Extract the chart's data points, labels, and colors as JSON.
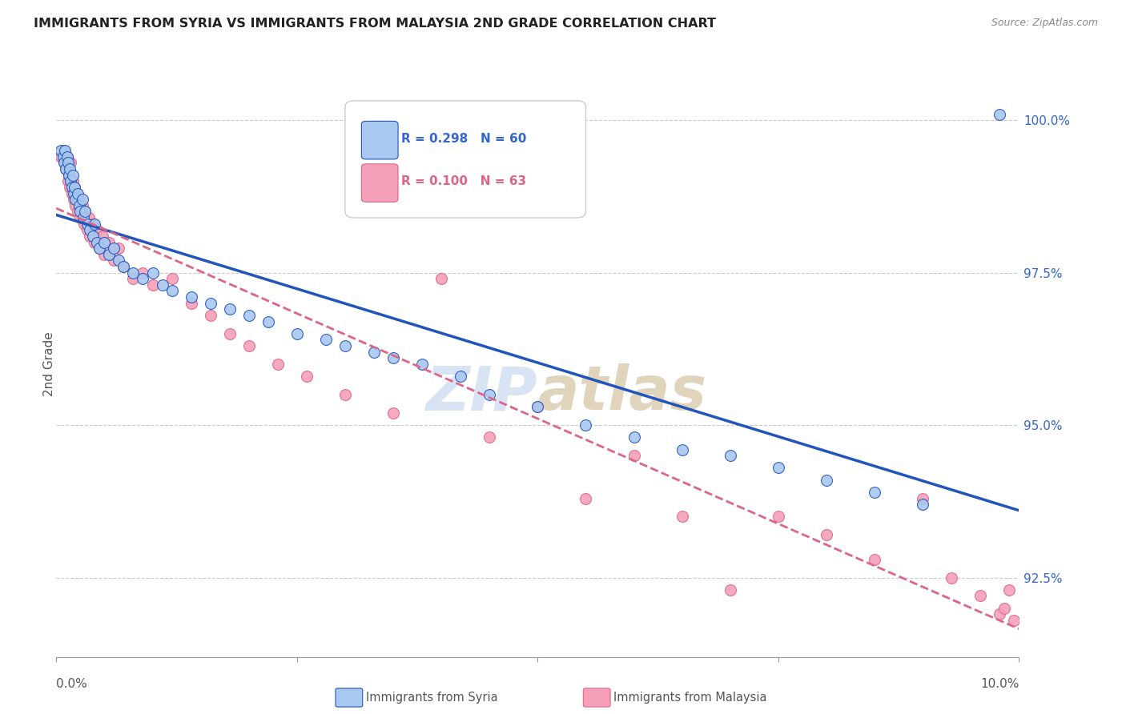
{
  "title": "IMMIGRANTS FROM SYRIA VS IMMIGRANTS FROM MALAYSIA 2ND GRADE CORRELATION CHART",
  "source": "Source: ZipAtlas.com",
  "ylabel": "2nd Grade",
  "yticks": [
    92.5,
    95.0,
    97.5,
    100.0
  ],
  "ytick_labels": [
    "92.5%",
    "95.0%",
    "97.5%",
    "100.0%"
  ],
  "xmin": 0.0,
  "xmax": 10.0,
  "ymin": 91.2,
  "ymax": 100.8,
  "blue_color": "#A8C8F0",
  "pink_color": "#F5A0B8",
  "trend_blue_color": "#2255BB",
  "trend_pink_color": "#DD6688",
  "watermark_zip_color": "#C8D8F0",
  "watermark_atlas_color": "#D4C8A8",
  "axis_label_color": "#3366CC",
  "tick_color": "#3366CC",
  "background_color": "#FFFFFF",
  "syria_x": [
    0.05,
    0.07,
    0.08,
    0.09,
    0.1,
    0.11,
    0.12,
    0.13,
    0.14,
    0.15,
    0.16,
    0.17,
    0.18,
    0.19,
    0.2,
    0.22,
    0.24,
    0.25,
    0.27,
    0.28,
    0.3,
    0.32,
    0.35,
    0.38,
    0.4,
    0.42,
    0.45,
    0.5,
    0.55,
    0.6,
    0.65,
    0.7,
    0.8,
    0.9,
    1.0,
    1.1,
    1.2,
    1.4,
    1.6,
    1.8,
    2.0,
    2.2,
    2.5,
    2.8,
    3.0,
    3.3,
    3.5,
    3.8,
    4.2,
    4.5,
    5.0,
    5.5,
    6.0,
    6.5,
    7.0,
    7.5,
    8.0,
    8.5,
    9.0,
    9.8
  ],
  "syria_y": [
    99.5,
    99.4,
    99.3,
    99.5,
    99.2,
    99.4,
    99.3,
    99.1,
    99.2,
    99.0,
    98.9,
    99.1,
    98.8,
    98.9,
    98.7,
    98.8,
    98.6,
    98.5,
    98.7,
    98.4,
    98.5,
    98.3,
    98.2,
    98.1,
    98.3,
    98.0,
    97.9,
    98.0,
    97.8,
    97.9,
    97.7,
    97.6,
    97.5,
    97.4,
    97.5,
    97.3,
    97.2,
    97.1,
    97.0,
    96.9,
    96.8,
    96.7,
    96.5,
    96.4,
    96.3,
    96.2,
    96.1,
    96.0,
    95.8,
    95.5,
    95.3,
    95.0,
    94.8,
    94.6,
    94.5,
    94.3,
    94.1,
    93.9,
    93.7,
    100.1
  ],
  "malaysia_x": [
    0.05,
    0.07,
    0.08,
    0.1,
    0.11,
    0.12,
    0.13,
    0.14,
    0.15,
    0.16,
    0.17,
    0.18,
    0.19,
    0.2,
    0.21,
    0.22,
    0.23,
    0.25,
    0.27,
    0.29,
    0.3,
    0.32,
    0.34,
    0.35,
    0.38,
    0.4,
    0.42,
    0.45,
    0.48,
    0.5,
    0.55,
    0.6,
    0.65,
    0.7,
    0.8,
    0.9,
    1.0,
    1.2,
    1.4,
    1.6,
    1.8,
    2.0,
    2.3,
    2.6,
    3.0,
    3.5,
    4.0,
    4.5,
    5.0,
    5.5,
    6.0,
    6.5,
    7.0,
    7.5,
    8.0,
    8.5,
    9.0,
    9.3,
    9.6,
    9.8,
    9.85,
    9.9,
    9.95
  ],
  "malaysia_y": [
    99.4,
    99.5,
    99.3,
    99.2,
    99.4,
    99.0,
    99.1,
    98.9,
    99.3,
    98.8,
    99.0,
    98.7,
    98.9,
    98.6,
    98.8,
    98.5,
    98.7,
    98.4,
    98.6,
    98.3,
    98.5,
    98.2,
    98.4,
    98.1,
    98.3,
    98.0,
    98.2,
    97.9,
    98.1,
    97.8,
    98.0,
    97.7,
    97.9,
    97.6,
    97.4,
    97.5,
    97.3,
    97.4,
    97.0,
    96.8,
    96.5,
    96.3,
    96.0,
    95.8,
    95.5,
    95.2,
    97.4,
    94.8,
    95.3,
    93.8,
    94.5,
    93.5,
    92.3,
    93.5,
    93.2,
    92.8,
    93.8,
    92.5,
    92.2,
    91.9,
    92.0,
    92.3,
    91.8
  ]
}
